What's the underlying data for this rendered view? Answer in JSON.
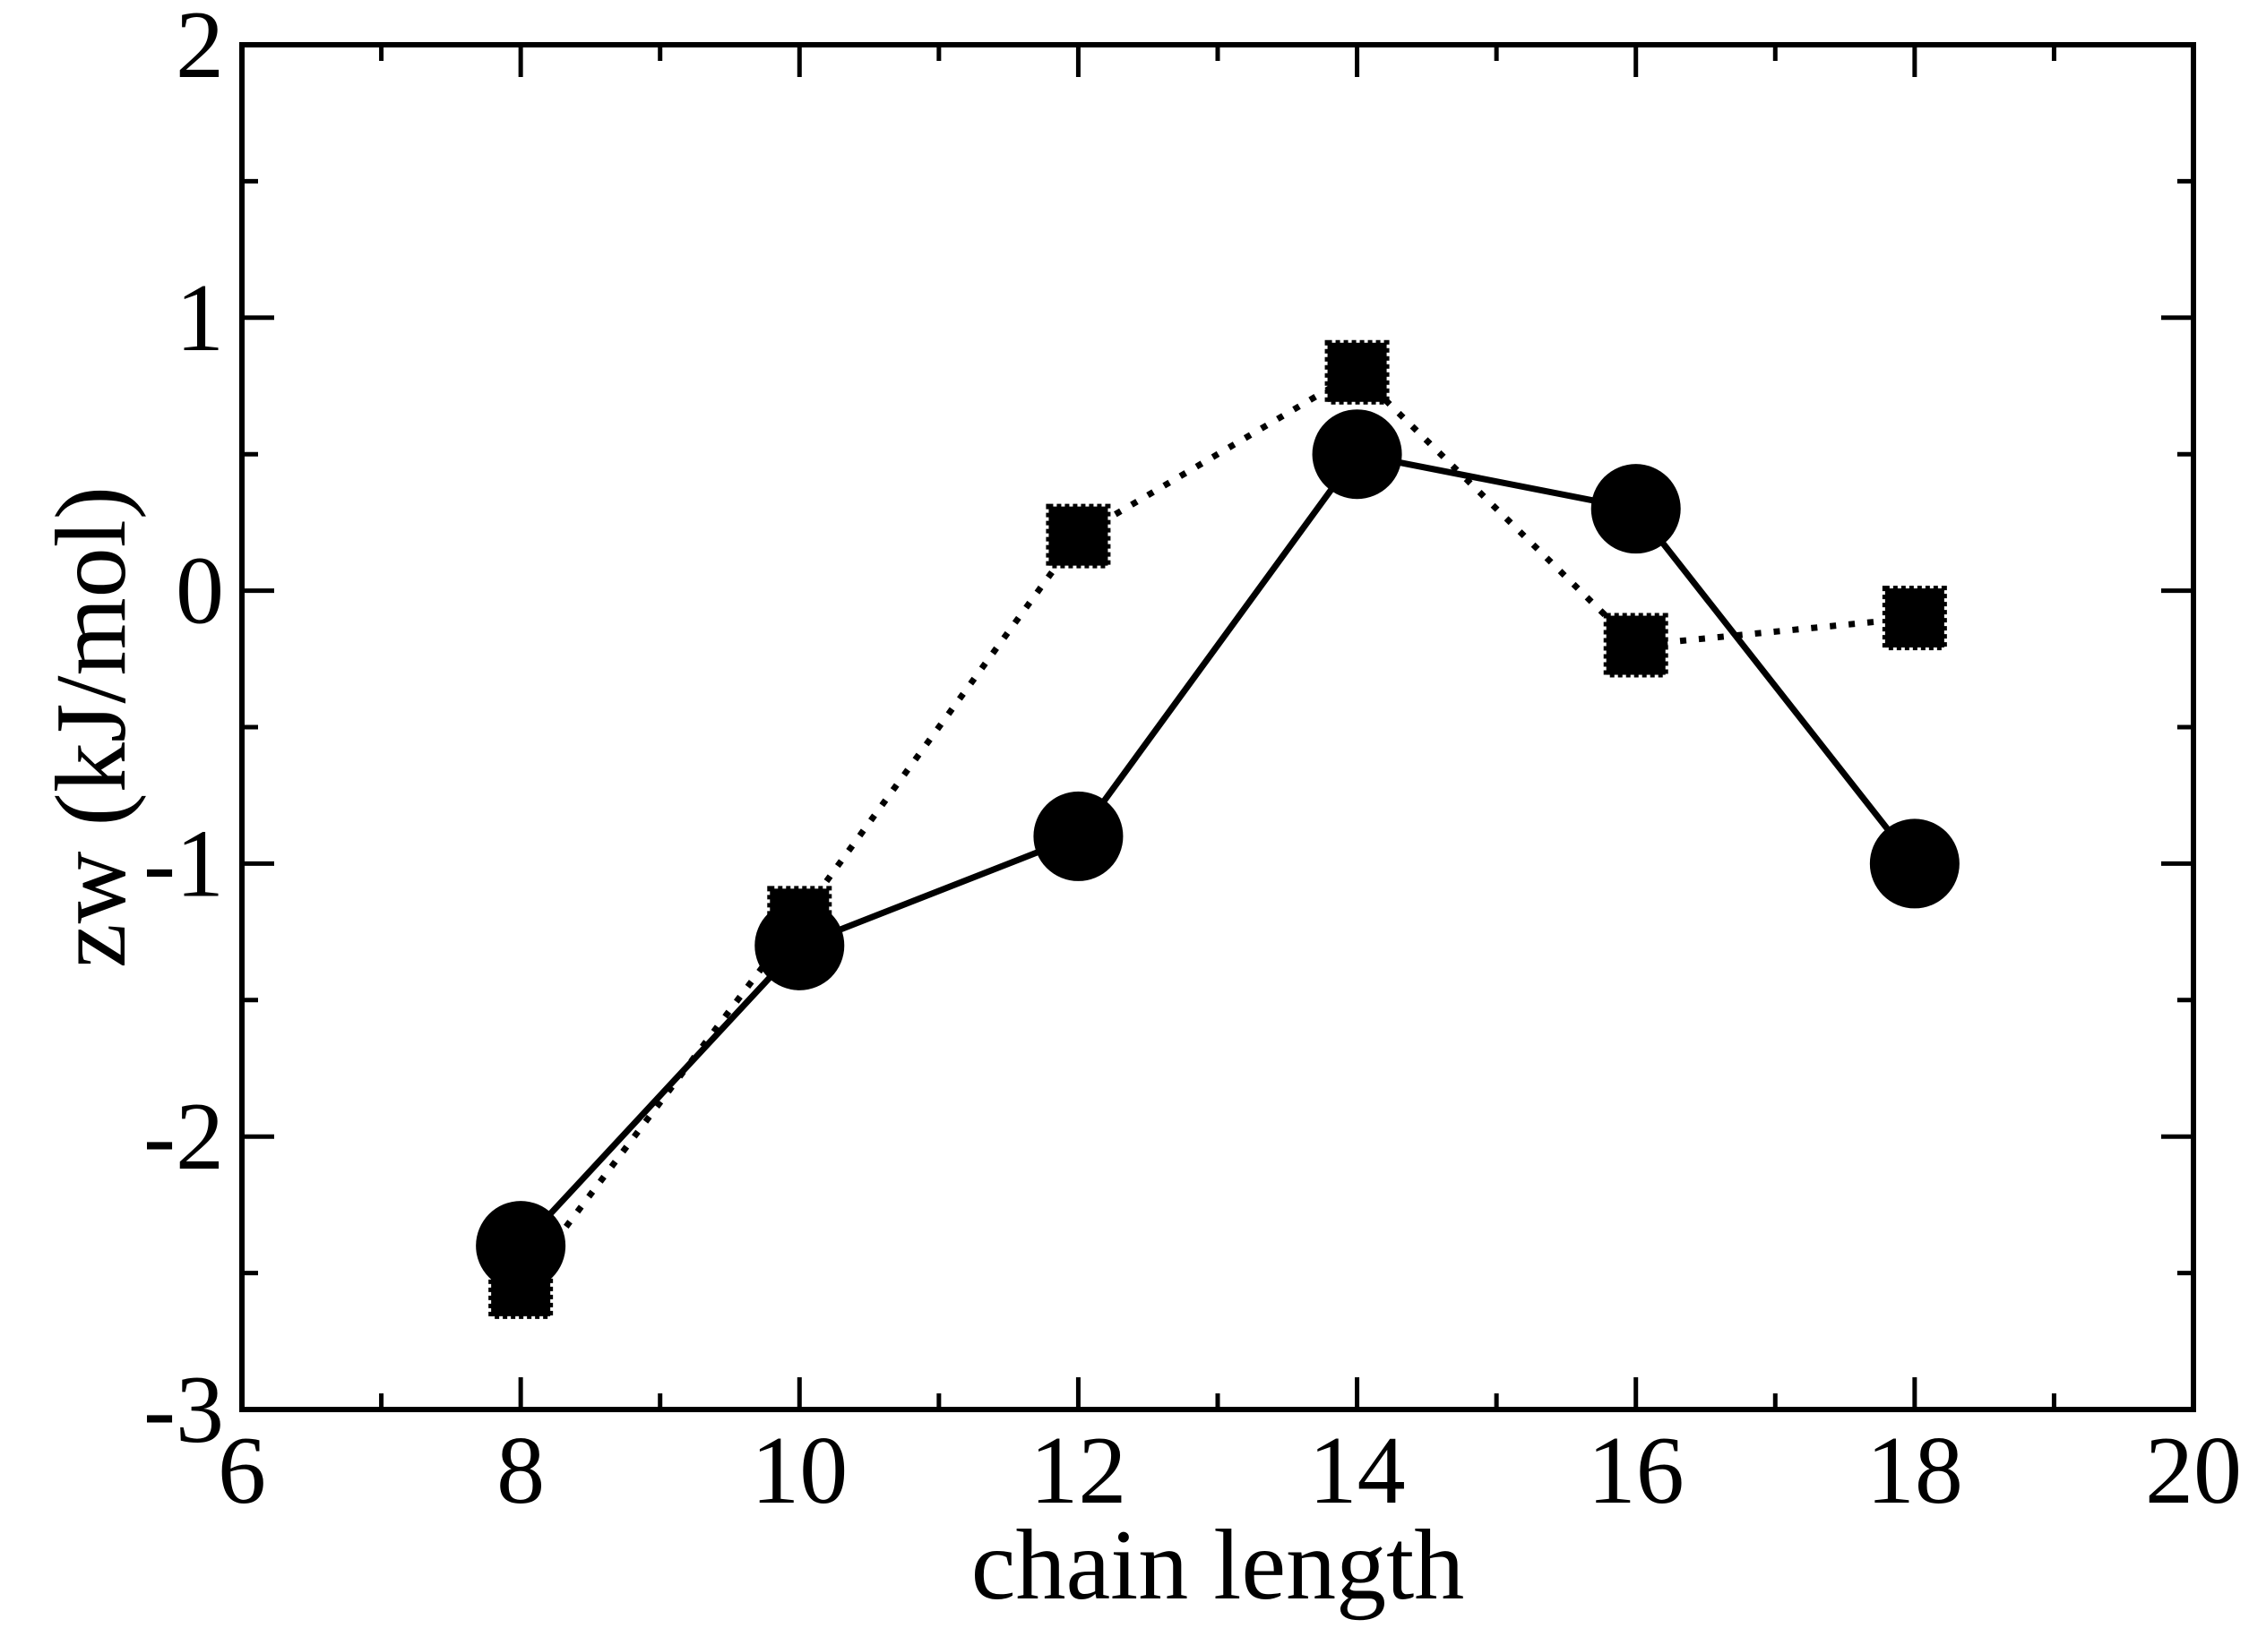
{
  "chart_data": {
    "type": "line",
    "title": "",
    "xlabel": "chain length",
    "ylabel": "zw (kJ/mol)",
    "xlim": [
      6,
      20
    ],
    "ylim": [
      -3,
      2
    ],
    "x_ticks": [
      6,
      8,
      10,
      12,
      14,
      16,
      18,
      20
    ],
    "y_ticks": [
      -3,
      -2,
      -1,
      0,
      1,
      2
    ],
    "x_minor_step": 1,
    "y_minor_step": 0.5,
    "grid": false,
    "legend": "none",
    "series": [
      {
        "marker": "circle",
        "line_style": "solid",
        "color": "#000000",
        "x": [
          8,
          10,
          12,
          14,
          16,
          18
        ],
        "values": [
          -2.4,
          -1.3,
          -0.9,
          0.5,
          0.3,
          -1.0
        ]
      },
      {
        "marker": "square",
        "line_style": "dotted",
        "color": "#000000",
        "x": [
          8,
          10,
          12,
          14,
          16,
          18
        ],
        "values": [
          -2.55,
          -1.2,
          0.2,
          0.8,
          -0.2,
          -0.1
        ]
      }
    ]
  }
}
